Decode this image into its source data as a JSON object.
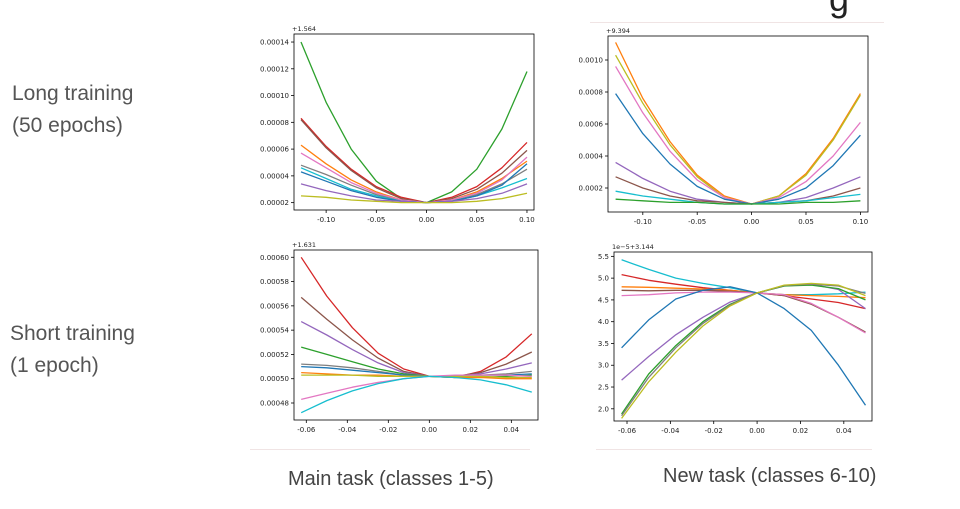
{
  "row_labels": [
    "Long training\n(50 epochs)",
    "Short training\n(1 epoch)"
  ],
  "col_labels": [
    "Main task (classes 1-5)",
    "New task (classes 6-10)"
  ],
  "header_fragment": "g",
  "chart_data": [
    {
      "type": "line",
      "offset_text": "+1.564",
      "x": [
        -0.125,
        -0.1,
        -0.075,
        -0.05,
        -0.025,
        0.0,
        0.025,
        0.05,
        0.075,
        0.1
      ],
      "xticks": [
        "-0.10",
        "-0.05",
        "0.00",
        "0.05",
        "0.10"
      ],
      "xtick_values": [
        -0.1,
        -0.05,
        0.0,
        0.05,
        0.1
      ],
      "xlim": [
        -0.132,
        0.107
      ],
      "yticks": [
        "0.00002",
        "0.00004",
        "0.00006",
        "0.00008",
        "0.00010",
        "0.00012",
        "0.00014"
      ],
      "ytick_values": [
        2e-05,
        4e-05,
        6e-05,
        8e-05,
        0.0001,
        0.00012,
        0.00014
      ],
      "ylim": [
        1.45e-05,
        0.000146
      ],
      "series": [
        {
          "color": "#2ca02c",
          "values": [
            0.00014,
            9.5e-05,
            6e-05,
            3.6e-05,
            2.3e-05,
            2e-05,
            2.8e-05,
            4.5e-05,
            7.5e-05,
            0.000118
          ]
        },
        {
          "color": "#d62728",
          "values": [
            8.3e-05,
            6.2e-05,
            4.5e-05,
            3.2e-05,
            2.4e-05,
            2e-05,
            2.4e-05,
            3.2e-05,
            4.6e-05,
            6.5e-05
          ]
        },
        {
          "color": "#8c564b",
          "values": [
            8.2e-05,
            6.1e-05,
            4.4e-05,
            3.1e-05,
            2.3e-05,
            2e-05,
            2.3e-05,
            3e-05,
            4.2e-05,
            5.9e-05
          ]
        },
        {
          "color": "#ff7f0e",
          "values": [
            6.3e-05,
            4.9e-05,
            3.7e-05,
            2.8e-05,
            2.2e-05,
            2e-05,
            2.2e-05,
            2.8e-05,
            3.8e-05,
            5.1e-05
          ]
        },
        {
          "color": "#e377c2",
          "values": [
            5.7e-05,
            4.6e-05,
            3.5e-05,
            2.7e-05,
            2.2e-05,
            2e-05,
            2.2e-05,
            2.7e-05,
            3.7e-05,
            5.4e-05
          ]
        },
        {
          "color": "#7f7f7f",
          "values": [
            4.8e-05,
            4.1e-05,
            3.3e-05,
            2.6e-05,
            2.1e-05,
            2e-05,
            2.1e-05,
            2.6e-05,
            3.4e-05,
            4.5e-05
          ]
        },
        {
          "color": "#17becf",
          "values": [
            4.6e-05,
            3.8e-05,
            3e-05,
            2.5e-05,
            2.1e-05,
            2e-05,
            2.1e-05,
            2.5e-05,
            3.1e-05,
            3.8e-05
          ]
        },
        {
          "color": "#1f77b4",
          "values": [
            4.3e-05,
            3.6e-05,
            2.9e-05,
            2.4e-05,
            2.1e-05,
            2e-05,
            2.1e-05,
            2.5e-05,
            3.3e-05,
            4.9e-05
          ]
        },
        {
          "color": "#9467bd",
          "values": [
            3.4e-05,
            2.9e-05,
            2.5e-05,
            2.2e-05,
            2.1e-05,
            2e-05,
            2.1e-05,
            2.3e-05,
            2.7e-05,
            3.4e-05
          ]
        },
        {
          "color": "#bcbd22",
          "values": [
            2.5e-05,
            2.4e-05,
            2.2e-05,
            2.1e-05,
            2e-05,
            2e-05,
            2e-05,
            2.1e-05,
            2.3e-05,
            2.7e-05
          ]
        }
      ]
    },
    {
      "type": "line",
      "offset_text": "+9.394",
      "x": [
        -0.125,
        -0.1,
        -0.075,
        -0.05,
        -0.025,
        0.0,
        0.025,
        0.05,
        0.075,
        0.1
      ],
      "xticks": [
        "-0.10",
        "-0.05",
        "0.00",
        "0.05",
        "0.10"
      ],
      "xtick_values": [
        -0.1,
        -0.05,
        0.0,
        0.05,
        0.1
      ],
      "xlim": [
        -0.132,
        0.107
      ],
      "yticks": [
        "0.0002",
        "0.0004",
        "0.0006",
        "0.0008",
        "0.0010"
      ],
      "ytick_values": [
        0.0002,
        0.0004,
        0.0006,
        0.0008,
        0.001
      ],
      "ylim": [
        5e-05,
        0.00115
      ],
      "series": [
        {
          "color": "#ff7f0e",
          "values": [
            0.00111,
            0.00076,
            0.00049,
            0.00028,
            0.00015,
            0.0001,
            0.00015,
            0.00029,
            0.00051,
            0.00079
          ]
        },
        {
          "color": "#bcbd22",
          "values": [
            0.00103,
            0.00073,
            0.00047,
            0.00027,
            0.00014,
            0.0001,
            0.00015,
            0.00028,
            0.0005,
            0.00078
          ]
        },
        {
          "color": "#e377c2",
          "values": [
            0.00096,
            0.00067,
            0.00043,
            0.00025,
            0.00014,
            0.0001,
            0.00014,
            0.00024,
            0.0004,
            0.00061
          ]
        },
        {
          "color": "#1f77b4",
          "values": [
            0.00079,
            0.00054,
            0.00035,
            0.00021,
            0.00013,
            0.0001,
            0.00013,
            0.0002,
            0.00034,
            0.00053
          ]
        },
        {
          "color": "#9467bd",
          "values": [
            0.00036,
            0.00026,
            0.00018,
            0.00013,
            0.00011,
            0.0001,
            0.00011,
            0.00014,
            0.0002,
            0.00027
          ]
        },
        {
          "color": "#8c564b",
          "values": [
            0.00027,
            0.0002,
            0.00015,
            0.00012,
            0.00011,
            0.0001,
            0.00011,
            0.00012,
            0.00015,
            0.0002
          ]
        },
        {
          "color": "#17becf",
          "values": [
            0.00018,
            0.00015,
            0.00013,
            0.00011,
            0.0001,
            0.0001,
            0.00011,
            0.00012,
            0.00014,
            0.00016
          ]
        },
        {
          "color": "#2ca02c",
          "values": [
            0.00013,
            0.00012,
            0.00011,
            0.00011,
            0.0001,
            0.0001,
            0.0001,
            0.00011,
            0.00011,
            0.00012
          ]
        }
      ]
    },
    {
      "type": "line",
      "offset_text": "+1.631",
      "x": [
        -0.0625,
        -0.05,
        -0.0375,
        -0.025,
        -0.0125,
        0.0,
        0.0125,
        0.025,
        0.0375,
        0.05
      ],
      "xticks": [
        "-0.06",
        "-0.04",
        "-0.02",
        "0.00",
        "0.02",
        "0.04"
      ],
      "xtick_values": [
        -0.06,
        -0.04,
        -0.02,
        0.0,
        0.02,
        0.04
      ],
      "xlim": [
        -0.066,
        0.053
      ],
      "yticks": [
        "0.00048",
        "0.00050",
        "0.00052",
        "0.00054",
        "0.00056",
        "0.00058",
        "0.00060"
      ],
      "ytick_values": [
        0.00048,
        0.0005,
        0.00052,
        0.00054,
        0.00056,
        0.00058,
        0.0006
      ],
      "ylim": [
        0.000466,
        0.000606
      ],
      "series": [
        {
          "color": "#d62728",
          "values": [
            0.0006,
            0.000568,
            0.000542,
            0.000521,
            0.000508,
            0.000502,
            0.000501,
            0.000506,
            0.000518,
            0.000537
          ]
        },
        {
          "color": "#8c564b",
          "values": [
            0.000567,
            0.000549,
            0.000532,
            0.000517,
            0.000506,
            0.000502,
            0.000502,
            0.000505,
            0.000512,
            0.000522
          ]
        },
        {
          "color": "#9467bd",
          "values": [
            0.000547,
            0.000536,
            0.000524,
            0.000513,
            0.000505,
            0.000502,
            0.000502,
            0.000504,
            0.000508,
            0.000513
          ]
        },
        {
          "color": "#2ca02c",
          "values": [
            0.000526,
            0.00052,
            0.000514,
            0.000508,
            0.000504,
            0.000502,
            0.000501,
            0.000501,
            0.000502,
            0.000503
          ]
        },
        {
          "color": "#7f7f7f",
          "values": [
            0.000512,
            0.000511,
            0.000509,
            0.000506,
            0.000503,
            0.000502,
            0.000502,
            0.000503,
            0.000504,
            0.000506
          ]
        },
        {
          "color": "#1f77b4",
          "values": [
            0.00051,
            0.000509,
            0.000507,
            0.000505,
            0.000503,
            0.000502,
            0.000502,
            0.000503,
            0.000503,
            0.000504
          ]
        },
        {
          "color": "#ff7f0e",
          "values": [
            0.000505,
            0.000504,
            0.000503,
            0.000503,
            0.000502,
            0.000502,
            0.000501,
            0.000501,
            0.0005,
            0.0005
          ]
        },
        {
          "color": "#bcbd22",
          "values": [
            0.000503,
            0.000503,
            0.000503,
            0.000502,
            0.000502,
            0.000502,
            0.000502,
            0.000502,
            0.000501,
            0.000501
          ]
        },
        {
          "color": "#e377c2",
          "values": [
            0.000483,
            0.000488,
            0.000493,
            0.000497,
            0.0005,
            0.000502,
            0.000503,
            0.000503,
            0.000503,
            0.000502
          ]
        },
        {
          "color": "#17becf",
          "values": [
            0.000472,
            0.000482,
            0.00049,
            0.000496,
            0.0005,
            0.000502,
            0.000501,
            0.000499,
            0.000495,
            0.000489
          ]
        }
      ]
    },
    {
      "type": "line",
      "offset_text": "1e−5+3.144",
      "x": [
        -0.0625,
        -0.05,
        -0.0375,
        -0.025,
        -0.0125,
        0.0,
        0.0125,
        0.025,
        0.0375,
        0.05
      ],
      "xticks": [
        "-0.06",
        "-0.04",
        "-0.02",
        "0.00",
        "0.02",
        "0.04"
      ],
      "xtick_values": [
        -0.06,
        -0.04,
        -0.02,
        0.0,
        0.02,
        0.04
      ],
      "xlim": [
        -0.066,
        0.053
      ],
      "yticks": [
        "2.0",
        "2.5",
        "3.0",
        "3.5",
        "4.0",
        "4.5",
        "5.0",
        "5.5"
      ],
      "ytick_values": [
        2.0,
        2.5,
        3.0,
        3.5,
        4.0,
        4.5,
        5.0,
        5.5
      ],
      "ylim": [
        1.72,
        5.6
      ],
      "series": [
        {
          "color": "#17becf",
          "values": [
            5.42,
            5.2,
            5.0,
            4.88,
            4.78,
            4.66,
            4.62,
            4.62,
            4.64,
            4.68
          ]
        },
        {
          "color": "#d62728",
          "values": [
            5.08,
            4.95,
            4.86,
            4.78,
            4.72,
            4.66,
            4.6,
            4.52,
            4.44,
            4.3
          ]
        },
        {
          "color": "#ff7f0e",
          "values": [
            4.8,
            4.79,
            4.77,
            4.75,
            4.72,
            4.66,
            4.62,
            4.6,
            4.58,
            4.55
          ]
        },
        {
          "color": "#8c564b",
          "values": [
            4.72,
            4.71,
            4.72,
            4.72,
            4.7,
            4.66,
            4.6,
            4.4,
            4.1,
            3.76
          ]
        },
        {
          "color": "#e377c2",
          "values": [
            4.6,
            4.62,
            4.66,
            4.68,
            4.68,
            4.66,
            4.62,
            4.42,
            4.1,
            3.74
          ]
        },
        {
          "color": "#1f77b4",
          "values": [
            3.4,
            4.04,
            4.52,
            4.72,
            4.8,
            4.66,
            4.3,
            3.8,
            3.0,
            2.08
          ]
        },
        {
          "color": "#9467bd",
          "values": [
            2.66,
            3.2,
            3.7,
            4.1,
            4.45,
            4.66,
            4.82,
            4.86,
            4.74,
            4.3
          ]
        },
        {
          "color": "#2ca02c",
          "values": [
            1.88,
            2.8,
            3.45,
            4.0,
            4.4,
            4.66,
            4.82,
            4.84,
            4.76,
            4.5
          ]
        },
        {
          "color": "#7f7f7f",
          "values": [
            1.84,
            2.72,
            3.4,
            3.96,
            4.38,
            4.66,
            4.83,
            4.86,
            4.82,
            4.65
          ]
        },
        {
          "color": "#bcbd22",
          "values": [
            1.78,
            2.62,
            3.3,
            3.9,
            4.36,
            4.66,
            4.84,
            4.88,
            4.84,
            4.6
          ]
        }
      ]
    }
  ]
}
